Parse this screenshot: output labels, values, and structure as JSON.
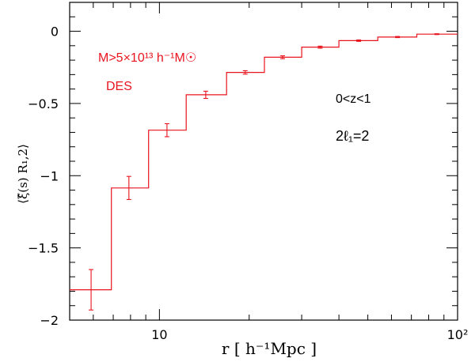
{
  "chart_data": {
    "type": "line",
    "step": true,
    "xscale": "log",
    "xlim": [
      5,
      100
    ],
    "ylim": [
      -2,
      0.2
    ],
    "xlabel": "r  [  h⁻¹Mpc  ]",
    "ylabel": "⟨ξ̂(s) R₁,2⟩",
    "x_ticks": [
      {
        "value": 10,
        "label": "10"
      },
      {
        "value": 100,
        "label": "10²"
      }
    ],
    "y_ticks": [
      {
        "value": 0,
        "label": "0"
      },
      {
        "value": -0.5,
        "label": "−0.5"
      },
      {
        "value": -1,
        "label": "−1"
      },
      {
        "value": -1.5,
        "label": "−1.5"
      },
      {
        "value": -2,
        "label": "−2"
      }
    ],
    "color": "#e8141e",
    "series": [
      {
        "bins": [
          {
            "x0": 5.0,
            "x1": 6.9,
            "y": -1.79
          },
          {
            "x0": 6.9,
            "x1": 9.2,
            "y": -1.085
          },
          {
            "x0": 9.2,
            "x1": 12.3,
            "y": -0.685
          },
          {
            "x0": 12.3,
            "x1": 16.8,
            "y": -0.44
          },
          {
            "x0": 16.8,
            "x1": 22.5,
            "y": -0.285
          },
          {
            "x0": 22.5,
            "x1": 30.0,
            "y": -0.18
          },
          {
            "x0": 30.0,
            "x1": 40.0,
            "y": -0.11
          },
          {
            "x0": 40.0,
            "x1": 54.0,
            "y": -0.065
          },
          {
            "x0": 54.0,
            "x1": 73.0,
            "y": -0.04
          },
          {
            "x0": 73.0,
            "x1": 100.0,
            "y": -0.02
          }
        ],
        "points": [
          {
            "x": 5.9,
            "y": -1.79,
            "err": 0.14
          },
          {
            "x": 7.9,
            "y": -1.085,
            "err": 0.08
          },
          {
            "x": 10.6,
            "y": -0.685,
            "err": 0.045
          },
          {
            "x": 14.3,
            "y": -0.44,
            "err": 0.025
          },
          {
            "x": 19.4,
            "y": -0.285,
            "err": 0.012
          },
          {
            "x": 25.9,
            "y": -0.18,
            "err": 0.01
          },
          {
            "x": 34.6,
            "y": -0.11,
            "err": 0.007
          },
          {
            "x": 46.6,
            "y": -0.065,
            "err": 0.005
          },
          {
            "x": 62.9,
            "y": -0.04,
            "err": 0.004
          },
          {
            "x": 85.2,
            "y": -0.02,
            "err": 0.003
          }
        ]
      }
    ],
    "annotations": {
      "mass_cut": "M>5×10¹³ h⁻¹M☉",
      "survey": "DES",
      "redshift": "0<z<1",
      "multipole": "2ℓ₁=2"
    }
  }
}
